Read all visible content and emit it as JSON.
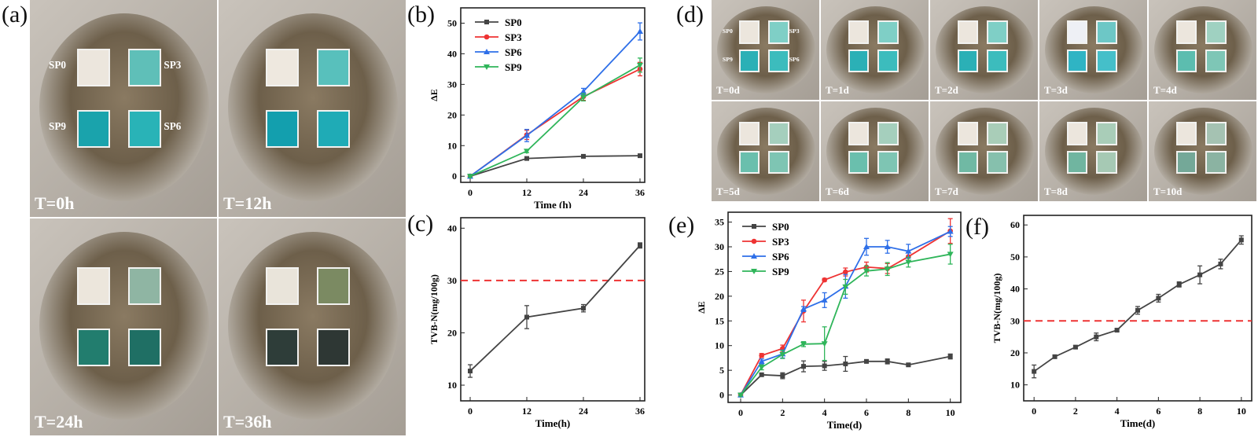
{
  "panel_labels": {
    "a": "(a)",
    "b": "(b)",
    "c": "(c)",
    "d": "(d)",
    "e": "(e)",
    "f": "(f)"
  },
  "panel_a": {
    "photos": [
      {
        "label": "T=0h",
        "squares": [
          "#ece6dd",
          "#5fbfb8",
          "#1aa3ac",
          "#29b3b7"
        ],
        "sp_labels": [
          "SP0",
          "SP3",
          "SP9",
          "SP6"
        ]
      },
      {
        "label": "T=12h",
        "squares": [
          "#eee8df",
          "#58c0bc",
          "#139fae",
          "#1fabb6"
        ]
      },
      {
        "label": "T=24h",
        "squares": [
          "#ece6dc",
          "#8fb5a3",
          "#227d6e",
          "#1f6f64"
        ]
      },
      {
        "label": "T=36h",
        "squares": [
          "#e9e4da",
          "#7b8a62",
          "#2e3d39",
          "#2e3734"
        ]
      }
    ]
  },
  "panel_d": {
    "photos": [
      {
        "label": "T=0d",
        "squares": [
          "#ece6dd",
          "#7fcfc6",
          "#2bb0b6",
          "#3cbcbd"
        ],
        "sp_labels": [
          "SP0",
          "SP3",
          "SP9",
          "SP6"
        ]
      },
      {
        "label": "T=1d",
        "squares": [
          "#ece6dd",
          "#7fcfc6",
          "#2bb0b6",
          "#3cbcbd"
        ]
      },
      {
        "label": "T=2d",
        "squares": [
          "#ece6dd",
          "#7fcfc6",
          "#2bb0b6",
          "#3cbcbd"
        ]
      },
      {
        "label": "T=3d",
        "squares": [
          "#eef0f5",
          "#6dc7c6",
          "#2fb4c4",
          "#45bfc9"
        ]
      },
      {
        "label": "T=4d",
        "squares": [
          "#ece6dd",
          "#9fd1c1",
          "#5cbdaf",
          "#7ec6b6"
        ]
      },
      {
        "label": "T=5d",
        "squares": [
          "#ece6dd",
          "#a5cfbd",
          "#6abfad",
          "#7ec5b3"
        ]
      },
      {
        "label": "T=6d",
        "squares": [
          "#ece6dd",
          "#a5cfbd",
          "#6abfad",
          "#7ec5b3"
        ]
      },
      {
        "label": "T=7d",
        "squares": [
          "#ece6dd",
          "#a9cdb8",
          "#70b9a4",
          "#86c0ad"
        ]
      },
      {
        "label": "T=8d",
        "squares": [
          "#ece6dd",
          "#a9cdb8",
          "#70b5a0",
          "#a6c9b4"
        ]
      },
      {
        "label": "T=10d",
        "squares": [
          "#ece6dd",
          "#a5c2b2",
          "#74a898",
          "#8bb3a2"
        ]
      }
    ]
  },
  "chart_data": [
    {
      "id": "b",
      "type": "line",
      "xlabel": "Time (h)",
      "ylabel": "ΔE",
      "xlim": [
        -2,
        37
      ],
      "ylim": [
        -2,
        55
      ],
      "xticks": [
        0,
        12,
        24,
        36
      ],
      "yticks": [
        0,
        10,
        20,
        30,
        40,
        50
      ],
      "legend": "top-left",
      "x": [
        0,
        12,
        24,
        36
      ],
      "series": [
        {
          "name": "SP0",
          "color": "#444444",
          "marker": "square",
          "values": [
            0,
            5.8,
            6.5,
            6.7
          ],
          "errors": [
            0.3,
            0.4,
            0.3,
            0.3
          ]
        },
        {
          "name": "SP3",
          "color": "#ee3333",
          "marker": "circle",
          "values": [
            0,
            13.5,
            26,
            35
          ],
          "errors": [
            0.3,
            1.5,
            1.2,
            2.2
          ]
        },
        {
          "name": "SP6",
          "color": "#2e6fe8",
          "marker": "triangle-up",
          "values": [
            0,
            13.3,
            27.7,
            47.3
          ],
          "errors": [
            0.3,
            2,
            1,
            2.8
          ]
        },
        {
          "name": "SP9",
          "color": "#2fb55a",
          "marker": "triangle-down",
          "values": [
            0,
            8.2,
            25.8,
            36.3
          ],
          "errors": [
            0.3,
            0.5,
            1.2,
            2.3
          ]
        }
      ]
    },
    {
      "id": "c",
      "type": "line",
      "xlabel": "Time(h)",
      "ylabel": "TVB-N(mg/100g)",
      "xlim": [
        -2,
        37
      ],
      "ylim": [
        7,
        42
      ],
      "xticks": [
        0,
        12,
        24,
        36
      ],
      "yticks": [
        10,
        20,
        30,
        40
      ],
      "threshold": 30,
      "x": [
        0,
        12,
        24,
        36
      ],
      "series": [
        {
          "color": "#444444",
          "marker": "square",
          "values": [
            12.7,
            23.0,
            24.7,
            36.7
          ],
          "errors": [
            1.2,
            2.2,
            0.7,
            0.5
          ]
        }
      ]
    },
    {
      "id": "e",
      "type": "line",
      "xlabel": "Time(d)",
      "ylabel": "ΔE",
      "xlim": [
        -0.6,
        10.5
      ],
      "ylim": [
        -1.5,
        37
      ],
      "xticks": [
        0,
        2,
        4,
        6,
        8,
        10
      ],
      "yticks": [
        0,
        5,
        10,
        15,
        20,
        25,
        30,
        35
      ],
      "legend": "top-left",
      "x": [
        0,
        1,
        2,
        3,
        4,
        5,
        6,
        7,
        8,
        10
      ],
      "series": [
        {
          "name": "SP0",
          "color": "#444444",
          "marker": "square",
          "values": [
            0,
            4.1,
            3.9,
            5.8,
            5.9,
            6.3,
            6.8,
            6.8,
            6.1,
            7.8
          ],
          "errors": [
            0.2,
            0.3,
            0.6,
            1.1,
            0.9,
            1.5,
            0.3,
            0.5,
            0.3,
            0.5
          ]
        },
        {
          "name": "SP3",
          "color": "#ee3333",
          "marker": "circle",
          "values": [
            0,
            8.0,
            9.4,
            17.0,
            23.3,
            24.9,
            25.9,
            25.6,
            28.0,
            33.2
          ],
          "errors": [
            0.2,
            0.4,
            0.7,
            2.2,
            0.3,
            0.8,
            1,
            1,
            0.8,
            2.5
          ]
        },
        {
          "name": "SP6",
          "color": "#2e6fe8",
          "marker": "triangle-up",
          "values": [
            0,
            6.8,
            8.3,
            17.4,
            19.2,
            22.0,
            30.0,
            30.0,
            29.1,
            33.1
          ],
          "errors": [
            0.2,
            0.5,
            0.8,
            0.5,
            1.5,
            2.4,
            1.7,
            1.3,
            1.4,
            1
          ]
        },
        {
          "name": "SP9",
          "color": "#2fb55a",
          "marker": "triangle-down",
          "values": [
            0,
            5.6,
            8.2,
            10.3,
            10.4,
            21.9,
            25.1,
            25.5,
            26.9,
            28.5
          ],
          "errors": [
            0.2,
            0.5,
            0.8,
            0.5,
            3.4,
            1.5,
            1,
            1.3,
            1,
            2
          ]
        }
      ]
    },
    {
      "id": "f",
      "type": "line",
      "xlabel": "Time(d)",
      "ylabel": "TVB-N(mg/100g)",
      "xlim": [
        -0.5,
        10.5
      ],
      "ylim": [
        5,
        63
      ],
      "xticks": [
        0,
        2,
        4,
        6,
        8,
        10
      ],
      "yticks": [
        10,
        20,
        30,
        40,
        50,
        60
      ],
      "threshold": 30,
      "x": [
        0,
        1,
        2,
        3,
        4,
        5,
        6,
        7,
        8,
        9,
        10
      ],
      "series": [
        {
          "color": "#444444",
          "marker": "square",
          "values": [
            14.2,
            18.8,
            21.8,
            25.0,
            27.1,
            33.3,
            37.1,
            41.4,
            44.4,
            47.8,
            55.3
          ],
          "errors": [
            2,
            0.4,
            0.5,
            1.2,
            0.4,
            1.2,
            1.2,
            0.8,
            2.8,
            1.5,
            1.3
          ]
        }
      ]
    }
  ]
}
